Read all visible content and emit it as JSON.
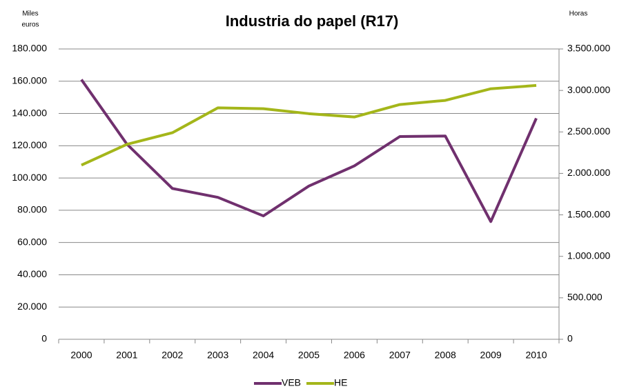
{
  "chart_data": {
    "type": "line",
    "title": "Industria do papel (R17)",
    "ylabel": [
      "Miles",
      "euros"
    ],
    "y2label": "Horas",
    "categories": [
      "2000",
      "2001",
      "2002",
      "2003",
      "2004",
      "2005",
      "2006",
      "2007",
      "2008",
      "2009",
      "2010"
    ],
    "series": [
      {
        "name": "VEB",
        "color": "#70306e",
        "values": [
          161000,
          121000,
          93500,
          88000,
          76500,
          95000,
          107500,
          125700,
          126000,
          73000,
          137000
        ]
      },
      {
        "name": "HE",
        "color": "#a4b61a",
        "axis": "y2",
        "values": [
          2100000,
          2350000,
          2490000,
          2790000,
          2780000,
          2720000,
          2680000,
          2830000,
          2880000,
          3020000,
          3060000
        ]
      }
    ],
    "ylim": [
      0,
      180000
    ],
    "yticks": [
      0,
      {
        "value": 20000,
        "label": "20.000"
      },
      {
        "value": 40000,
        "label": "40.000"
      },
      {
        "value": 60000,
        "label": "60.000"
      },
      {
        "value": 80000,
        "label": "80.000"
      },
      {
        "value": 100000,
        "label": "100.000"
      },
      {
        "value": 120000,
        "label": "120.000"
      },
      {
        "value": 140000,
        "label": "140.000"
      },
      {
        "value": 160000,
        "label": "160.000"
      },
      {
        "value": 180000,
        "label": "180.000"
      }
    ],
    "y2lim": [
      0,
      3500000
    ],
    "y2ticks": [
      0,
      {
        "value": 500000,
        "label": "500.000"
      },
      {
        "value": 1000000,
        "label": "1.000.000"
      },
      {
        "value": 1500000,
        "label": "1.500.000"
      },
      {
        "value": 2000000,
        "label": "2.000.000"
      },
      {
        "value": 2500000,
        "label": "2.500.000"
      },
      {
        "value": 3000000,
        "label": "3.000.000"
      },
      {
        "value": 3500000,
        "label": "3.500.000"
      }
    ],
    "grid": true,
    "legend": "bottom"
  }
}
